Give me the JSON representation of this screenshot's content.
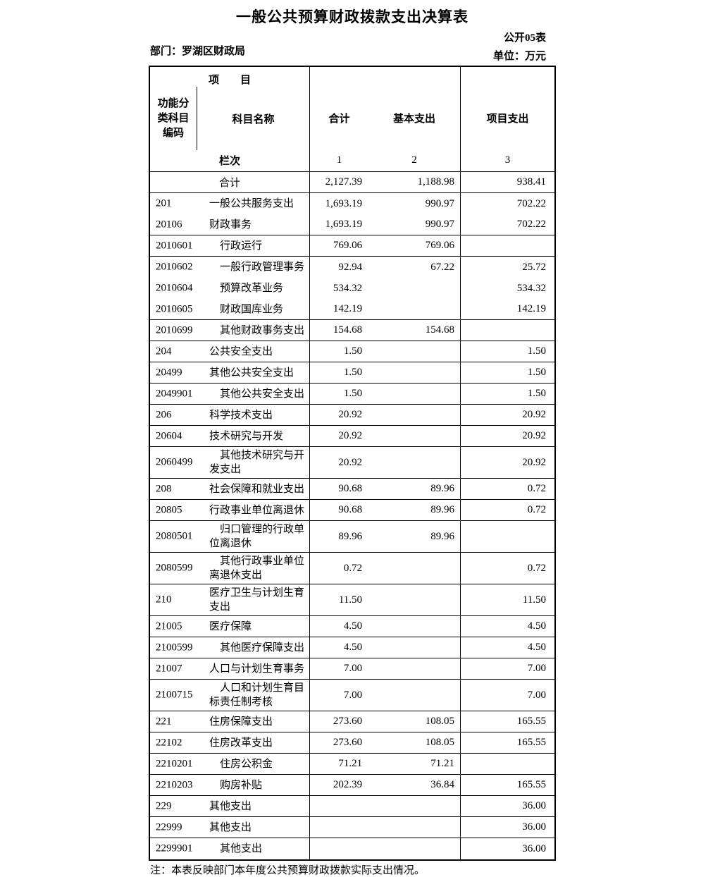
{
  "page": {
    "title": "一般公共预算财政拨款支出决算表",
    "table_code": "公开05表",
    "department_label": "部门：罗湖区财政局",
    "unit_label": "单位：万元",
    "note": "注：本表反映部门本年度公共预算财政拨款实际支出情况。"
  },
  "header": {
    "project": "项　　目",
    "code_label": "功能分\n类科目\n编码",
    "subject_name": "科目名称",
    "row_label": "栏次",
    "col_total": "合计",
    "col_basic": "基本支出",
    "col_project": "项目支出",
    "num_1": "1",
    "num_2": "2",
    "num_3": "3"
  },
  "rows": [
    {
      "code": "",
      "name": "合计",
      "total": "2,127.39",
      "basic": "1,188.98",
      "project": "938.41",
      "summary": true
    },
    {
      "code": "201",
      "name": "一般公共服务支出",
      "total": "1,693.19",
      "basic": "990.97",
      "project": "702.22",
      "join_next": true
    },
    {
      "code": "20106",
      "name": "财政事务",
      "total": "1,693.19",
      "basic": "990.97",
      "project": "702.22"
    },
    {
      "code": "2010601",
      "name": "　行政运行",
      "total": "769.06",
      "basic": "769.06",
      "project": ""
    },
    {
      "code": "2010602",
      "name": "　一般行政管理事务",
      "total": "92.94",
      "basic": "67.22",
      "project": "25.72",
      "join_next": true
    },
    {
      "code": "2010604",
      "name": "　预算改革业务",
      "total": "534.32",
      "basic": "",
      "project": "534.32",
      "join_next": true
    },
    {
      "code": "2010605",
      "name": "　财政国库业务",
      "total": "142.19",
      "basic": "",
      "project": "142.19"
    },
    {
      "code": "2010699",
      "name": "　其他财政事务支出",
      "total": "154.68",
      "basic": "154.68",
      "project": ""
    },
    {
      "code": "204",
      "name": "公共安全支出",
      "total": "1.50",
      "basic": "",
      "project": "1.50"
    },
    {
      "code": "20499",
      "name": "其他公共安全支出",
      "total": "1.50",
      "basic": "",
      "project": "1.50"
    },
    {
      "code": "2049901",
      "name": "　其他公共安全支出",
      "total": "1.50",
      "basic": "",
      "project": "1.50"
    },
    {
      "code": "206",
      "name": "科学技术支出",
      "total": "20.92",
      "basic": "",
      "project": "20.92"
    },
    {
      "code": "20604",
      "name": "技术研究与开发",
      "total": "20.92",
      "basic": "",
      "project": "20.92"
    },
    {
      "code": "2060499",
      "name": "　其他技术研究与开\n发支出",
      "total": "20.92",
      "basic": "",
      "project": "20.92"
    },
    {
      "code": "208",
      "name": "社会保障和就业支出",
      "total": "90.68",
      "basic": "89.96",
      "project": "0.72"
    },
    {
      "code": "20805",
      "name": "行政事业单位离退休",
      "total": "90.68",
      "basic": "89.96",
      "project": "0.72"
    },
    {
      "code": "2080501",
      "name": "　归口管理的行政单\n位离退休",
      "total": "89.96",
      "basic": "89.96",
      "project": ""
    },
    {
      "code": "2080599",
      "name": "　其他行政事业单位\n离退休支出",
      "total": "0.72",
      "basic": "",
      "project": "0.72"
    },
    {
      "code": "210",
      "name": "医疗卫生与计划生育\n支出",
      "total": "11.50",
      "basic": "",
      "project": "11.50"
    },
    {
      "code": "21005",
      "name": "医疗保障",
      "total": "4.50",
      "basic": "",
      "project": "4.50"
    },
    {
      "code": "2100599",
      "name": "　其他医疗保障支出",
      "total": "4.50",
      "basic": "",
      "project": "4.50"
    },
    {
      "code": "21007",
      "name": "人口与计划生育事务",
      "total": "7.00",
      "basic": "",
      "project": "7.00"
    },
    {
      "code": "2100715",
      "name": "　人口和计划生育目\n标责任制考核",
      "total": "7.00",
      "basic": "",
      "project": "7.00"
    },
    {
      "code": "221",
      "name": "住房保障支出",
      "total": "273.60",
      "basic": "108.05",
      "project": "165.55"
    },
    {
      "code": "22102",
      "name": "住房改革支出",
      "total": "273.60",
      "basic": "108.05",
      "project": "165.55"
    },
    {
      "code": "2210201",
      "name": "　住房公积金",
      "total": "71.21",
      "basic": "71.21",
      "project": ""
    },
    {
      "code": "2210203",
      "name": "　购房补贴",
      "total": "202.39",
      "basic": "36.84",
      "project": "165.55"
    },
    {
      "code": "229",
      "name": "其他支出",
      "total": "",
      "basic": "",
      "project": "36.00"
    },
    {
      "code": "22999",
      "name": "其他支出",
      "total": "",
      "basic": "",
      "project": "36.00"
    },
    {
      "code": "2299901",
      "name": "　其他支出",
      "total": "",
      "basic": "",
      "project": "36.00"
    }
  ]
}
